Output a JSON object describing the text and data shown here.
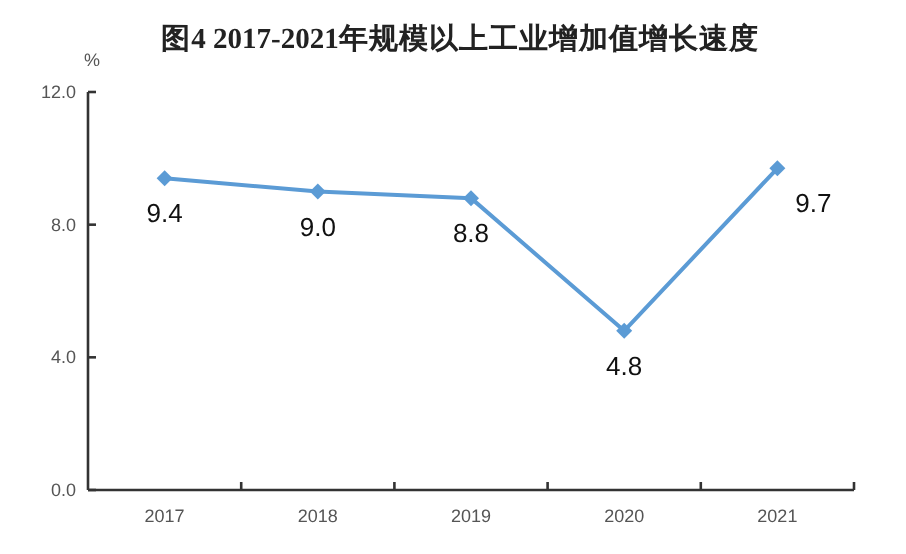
{
  "chart_data": {
    "type": "line",
    "title": "图4 2017-2021年规模以上工业增加值增长速度",
    "ylabel": "%",
    "categories": [
      "2017",
      "2018",
      "2019",
      "2020",
      "2021"
    ],
    "series": [
      {
        "color": "#5b9bd5",
        "values": [
          9.4,
          9.0,
          8.8,
          4.8,
          9.7
        ],
        "value_labels": [
          "9.4",
          "9.0",
          "8.8",
          "4.8",
          "9.7"
        ]
      }
    ],
    "ylim": [
      0,
      12
    ],
    "yticks": [
      {
        "value": 0,
        "label": "0.0"
      },
      {
        "value": 4,
        "label": "4.0"
      },
      {
        "value": 8,
        "label": "8.0"
      },
      {
        "value": 12,
        "label": "12.0"
      }
    ],
    "marker": "diamond",
    "line_style": "solid"
  }
}
